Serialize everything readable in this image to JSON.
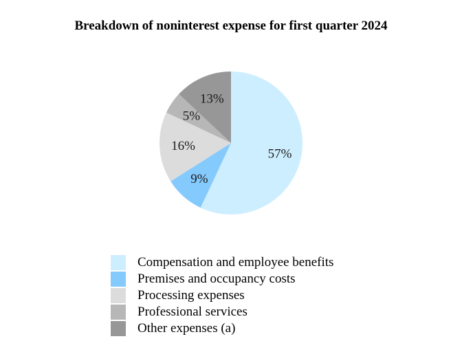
{
  "chart_data": {
    "type": "pie",
    "title": "Breakdown of noninterest expense for first quarter 2024",
    "categories": [
      "Compensation and employee benefits",
      "Premises and occupancy costs",
      "Processing expenses",
      "Professional services",
      "Other expenses (a)"
    ],
    "values": [
      57,
      9,
      16,
      5,
      13
    ],
    "data_labels": [
      "57%",
      "9%",
      "16%",
      "5%",
      "13%"
    ],
    "colors": [
      "#cdeefe",
      "#85cafd",
      "#dcdcdc",
      "#b7b7b7",
      "#979797"
    ],
    "start": "12 o'clock",
    "direction": "clockwise",
    "legend_position": "bottom"
  }
}
